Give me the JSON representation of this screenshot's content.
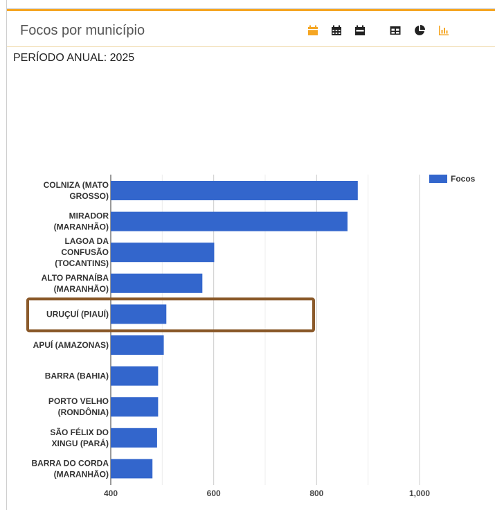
{
  "panel": {
    "title": "Focos por município",
    "subtitle": "PERÍODO ANUAL: 2025"
  },
  "toolbar": {
    "icons": [
      "calendar-icon",
      "calendar-month-icon",
      "calendar-week-icon",
      "table-icon",
      "pie-chart-icon",
      "bar-chart-icon"
    ],
    "active_color": "#f5a623",
    "inactive_color": "#222222"
  },
  "chart_data": {
    "type": "bar",
    "orientation": "horizontal",
    "categories": [
      [
        "COLNIZA (MATO",
        "GROSSO)"
      ],
      [
        "MIRADOR",
        "(MARANHÃO)"
      ],
      [
        "LAGOA DA",
        "CONFUSÃO",
        "(TOCANTINS)"
      ],
      [
        "ALTO PARNAÍBA",
        "(MARANHÃO)"
      ],
      [
        "URUÇUÍ (PIAUÍ)"
      ],
      [
        "APUÍ (AMAZONAS)"
      ],
      [
        "BARRA (BAHIA)"
      ],
      [
        "PORTO VELHO",
        "(RONDÔNIA)"
      ],
      [
        "SÃO FÉLIX DO",
        "XINGU (PARÁ)"
      ],
      [
        "BARRA DO CORDA",
        "(MARANHÃO)"
      ]
    ],
    "series": [
      {
        "name": "Focos",
        "values": [
          880,
          860,
          601,
          578,
          508,
          503,
          492,
          492,
          490,
          481
        ],
        "color": "#3366cc"
      }
    ],
    "xlim": [
      400,
      1000
    ],
    "xticks": [
      400,
      600,
      800,
      1000
    ],
    "xtick_labels": [
      "400",
      "600",
      "800",
      "1,000"
    ],
    "grid": true,
    "legend_position": "top-right",
    "highlighted_category_index": 4,
    "highlight_color": "#8b5a2b"
  }
}
